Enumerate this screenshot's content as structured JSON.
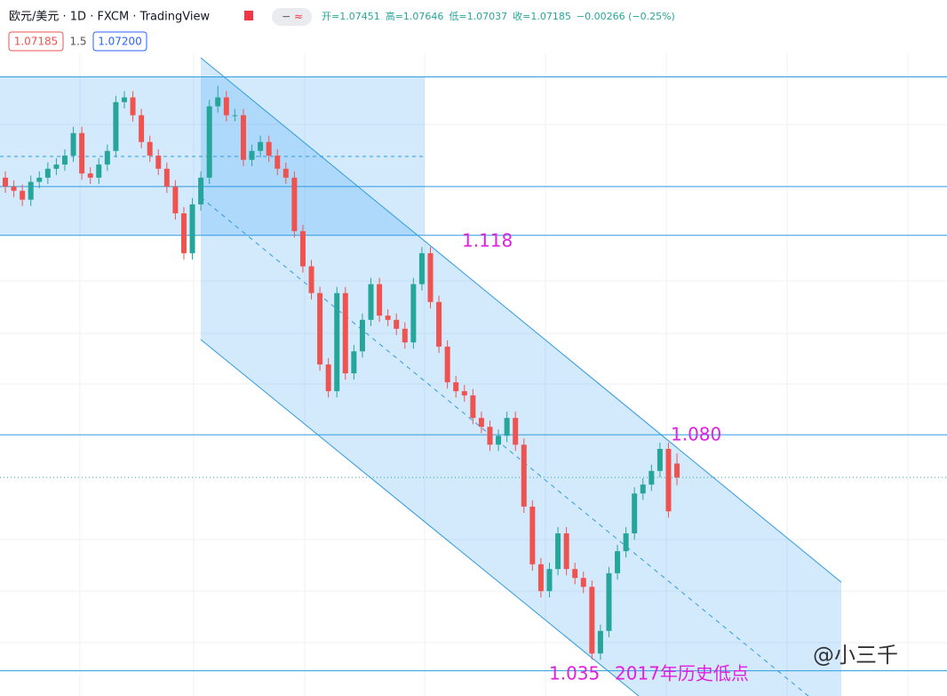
{
  "chart_data": {
    "type": "candlestick",
    "title": "欧元/美元 · 1D · FXCM · TradingView",
    "legend": [
      "开=1.07451",
      "高=1.07646",
      "低=1.07037",
      "收=1.07185",
      "−0.00266 (−0.25%)"
    ],
    "bid": 1.07185,
    "spread": 1.5,
    "ask": {
      "value": 1.072,
      "label": "1.07200"
    },
    "up_color": "#26a69a",
    "down_color": "#ef5350",
    "line_color": "#2f9ae0",
    "ylim": [
      1.0302,
      1.1527
    ],
    "hlines": [
      1.1482,
      1.1273,
      {
        "value": 1.118,
        "label": "1.118"
      },
      {
        "value": 1.08,
        "label": "1.080"
      },
      {
        "value": 1.035,
        "label": "1.035"
      }
    ],
    "annotation": "2017年历史低点",
    "watermark": "@小三千",
    "open": [
      1.129,
      1.1273,
      1.1265,
      1.1248,
      1.1282,
      1.129,
      1.1307,
      1.1315,
      1.1332,
      1.1375,
      1.1298,
      1.129,
      1.1315,
      1.1341,
      1.1434,
      1.1443,
      1.1409,
      1.1358,
      1.1332,
      1.1307,
      1.1273,
      1.1222,
      1.1146,
      1.1239,
      1.129,
      1.1426,
      1.1443,
      1.1409,
      1.1409,
      1.1324,
      1.1341,
      1.1358,
      1.1332,
      1.1307,
      1.129,
      1.1188,
      1.1121,
      1.107,
      1.0934,
      1.0883,
      1.107,
      1.0917,
      1.0959,
      1.1019,
      1.1087,
      1.1027,
      1.1019,
      1.1002,
      1.0976,
      1.1087,
      1.1146,
      1.1053,
      1.0968,
      1.09,
      1.0883,
      1.0875,
      1.0832,
      1.0815,
      1.0781,
      1.0798,
      1.0832,
      1.0781,
      1.0663,
      1.0553,
      1.0502,
      1.0544,
      1.0612,
      1.0544,
      1.0527,
      1.051,
      1.0383,
      1.0426,
      1.0536,
      1.0578,
      1.0612,
      1.0688,
      1.0705,
      1.0731,
      1.0773,
      1.07451
    ],
    "high": [
      1.1302,
      1.1285,
      1.1277,
      1.1294,
      1.1302,
      1.1319,
      1.1327,
      1.1344,
      1.1387,
      1.1387,
      1.131,
      1.1327,
      1.1353,
      1.1446,
      1.1455,
      1.1455,
      1.1421,
      1.137,
      1.1344,
      1.1319,
      1.1285,
      1.1234,
      1.1251,
      1.1302,
      1.1438,
      1.1465,
      1.1455,
      1.1421,
      1.1421,
      1.1353,
      1.137,
      1.137,
      1.1344,
      1.1319,
      1.1302,
      1.12,
      1.1133,
      1.1082,
      1.0946,
      1.1082,
      1.1082,
      1.0971,
      1.1031,
      1.1099,
      1.1099,
      1.1039,
      1.1031,
      1.1014,
      1.1099,
      1.1158,
      1.1158,
      1.1065,
      1.098,
      1.0912,
      1.0895,
      1.0887,
      1.0844,
      1.0827,
      1.081,
      1.0844,
      1.0844,
      1.0793,
      1.0675,
      1.0565,
      1.0556,
      1.0624,
      1.0624,
      1.0556,
      1.0539,
      1.0522,
      1.0438,
      1.0548,
      1.059,
      1.0624,
      1.07,
      1.0717,
      1.0743,
      1.0785,
      1.0785,
      1.07646
    ],
    "low": [
      1.1261,
      1.1253,
      1.1236,
      1.1236,
      1.127,
      1.1278,
      1.1295,
      1.1303,
      1.132,
      1.1286,
      1.1278,
      1.1278,
      1.1303,
      1.1329,
      1.1422,
      1.1397,
      1.1346,
      1.132,
      1.1295,
      1.1261,
      1.121,
      1.1134,
      1.1134,
      1.1227,
      1.1278,
      1.1414,
      1.1397,
      1.1397,
      1.1312,
      1.1312,
      1.1329,
      1.132,
      1.1295,
      1.1278,
      1.1176,
      1.1109,
      1.1058,
      1.0922,
      1.0871,
      1.0871,
      1.0905,
      1.0905,
      1.0947,
      1.1007,
      1.1015,
      1.1007,
      1.099,
      1.0964,
      1.0964,
      1.1075,
      1.1041,
      1.0956,
      1.0888,
      1.0871,
      1.0863,
      1.082,
      1.0803,
      1.0769,
      1.0769,
      1.0786,
      1.0769,
      1.0651,
      1.0541,
      1.049,
      1.049,
      1.0532,
      1.0532,
      1.0515,
      1.0498,
      1.0371,
      1.0371,
      1.0414,
      1.0524,
      1.0566,
      1.06,
      1.0676,
      1.0693,
      1.0719,
      1.0642,
      1.07037
    ],
    "close": [
      1.1273,
      1.1265,
      1.1248,
      1.1282,
      1.129,
      1.1307,
      1.1315,
      1.1332,
      1.1375,
      1.1298,
      1.129,
      1.1315,
      1.1341,
      1.1434,
      1.1443,
      1.1409,
      1.1358,
      1.1332,
      1.1307,
      1.1273,
      1.1222,
      1.1146,
      1.1239,
      1.129,
      1.1426,
      1.1443,
      1.1409,
      1.1409,
      1.1324,
      1.1341,
      1.1358,
      1.1332,
      1.1307,
      1.129,
      1.1188,
      1.1121,
      1.107,
      1.0934,
      1.0883,
      1.107,
      1.0917,
      1.0959,
      1.1019,
      1.1087,
      1.1027,
      1.1019,
      1.1002,
      1.0976,
      1.1087,
      1.1146,
      1.1053,
      1.0968,
      1.09,
      1.0883,
      1.0875,
      1.0832,
      1.0815,
      1.0781,
      1.0798,
      1.0832,
      1.0781,
      1.0663,
      1.0553,
      1.0502,
      1.0544,
      1.0612,
      1.0544,
      1.0527,
      1.051,
      1.0383,
      1.0426,
      1.0536,
      1.0578,
      1.0612,
      1.0688,
      1.0705,
      1.0731,
      1.0773,
      1.0654,
      1.07185
    ]
  }
}
